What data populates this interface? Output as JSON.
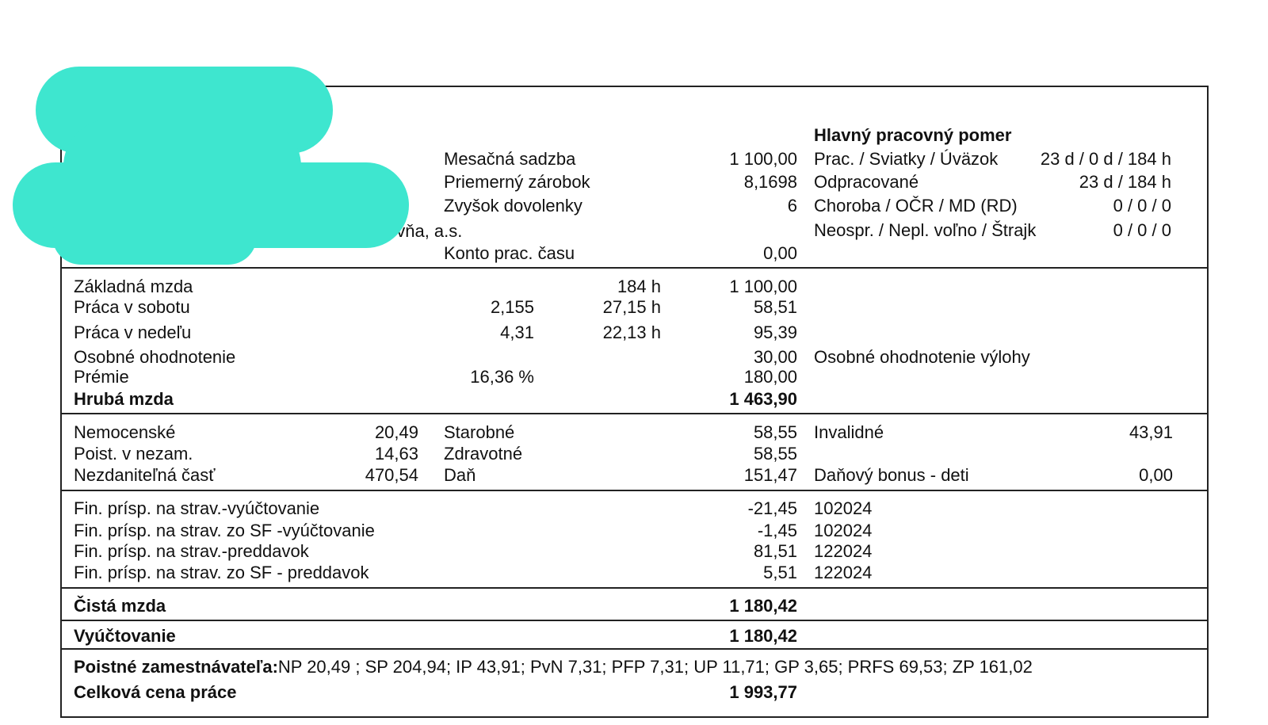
{
  "header": {
    "employer_suffix": "ovňa, a.s.",
    "monthly_rate": {
      "label": "Mesačná sadzba",
      "value": "1 100,00"
    },
    "avg_earnings": {
      "label": "Priemerný zárobok",
      "value": "8,1698"
    },
    "vacation_rest": {
      "label": "Zvyšok dovolenky",
      "value": "6"
    },
    "work_account": {
      "label": "Konto prac. času",
      "value": "0,00"
    },
    "employment": {
      "title": "Hlavný pracovný pomer",
      "rows": [
        {
          "label": "Prac. / Sviatky / Úväzok",
          "value": "23 d / 0 d / 184 h"
        },
        {
          "label": "Odpracované",
          "value": "23 d / 184 h"
        },
        {
          "label": "Choroba / OČR / MD (RD)",
          "value": "0 / 0 / 0"
        },
        {
          "label": "Neospr. / Nepl. voľno / Štrajk",
          "value": "0 / 0 / 0"
        }
      ]
    }
  },
  "wages": {
    "rows": [
      {
        "label": "Základná mzda",
        "rate": "",
        "hours": "184 h",
        "amount": "1 100,00",
        "note": ""
      },
      {
        "label": "Práca v sobotu",
        "rate": "2,155",
        "hours": "27,15 h",
        "amount": "58,51",
        "note": ""
      },
      {
        "label": "Práca v nedeľu",
        "rate": "4,31",
        "hours": "22,13 h",
        "amount": "95,39",
        "note": ""
      },
      {
        "label": "Osobné ohodnotenie",
        "rate": "",
        "hours": "",
        "amount": "30,00",
        "note": "Osobné ohodnotenie výlohy"
      },
      {
        "label": "Prémie",
        "rate": "16,36 %",
        "hours": "",
        "amount": "180,00",
        "note": ""
      }
    ],
    "gross": {
      "label": "Hrubá mzda",
      "amount": "1 463,90"
    }
  },
  "deductions": {
    "sickness": {
      "label": "Nemocenské",
      "value": "20,49"
    },
    "unemployment": {
      "label": "Poist. v nezam.",
      "value": "14,63"
    },
    "nontaxable": {
      "label": "Nezdaniteľná časť",
      "value": "470,54"
    },
    "oldage": {
      "label": "Starobné",
      "value": "58,55"
    },
    "health": {
      "label": "Zdravotné",
      "value": "58,55"
    },
    "tax": {
      "label": "Daň",
      "value": "151,47"
    },
    "disability": {
      "label": "Invalidné",
      "value": "43,91"
    },
    "child_bonus": {
      "label": "Daňový bonus - deti",
      "value": "0,00"
    }
  },
  "meals": {
    "rows": [
      {
        "label": "Fin. príspevok na strav.-vyúčtovanie",
        "display": "Fin. prísp. na strav.-vyúčtovanie",
        "amount": "-21,45",
        "period": "102024"
      },
      {
        "label": "Fin. príspevok na strav. zo SF -vyúčtovanie",
        "display": "Fin. prísp. na strav. zo SF -vyúčtovanie",
        "amount": "-1,45",
        "period": "102024"
      },
      {
        "label": "Fin. príspevok na strav.-preddavok",
        "display": "Fin. prísp. na strav.-preddavok",
        "amount": "81,51",
        "period": "122024"
      },
      {
        "label": "Fin. príspevok na strav. zo SF - preddavok",
        "display": "Fin. prísp. na strav. zo SF - preddavok",
        "amount": "5,51",
        "period": "122024"
      }
    ]
  },
  "net": {
    "label": "Čistá mzda",
    "amount": "1 180,42"
  },
  "settlement": {
    "label": "Vyúčtovanie",
    "amount": "1 180,42"
  },
  "employer": {
    "label": "Poistné zamestnávateľa:",
    "value": "NP 20,49 ; SP 204,94; IP 43,91; PvN 7,31; PFP 7,31; UP 11,71; GP 3,65; PRFS 69,53; ZP 161,02"
  },
  "total": {
    "label": "Celková cena práce",
    "amount": "1 993,77"
  },
  "colors": {
    "redaction": "#3ee6cf",
    "ink": "#111111",
    "rule": "#222222"
  }
}
